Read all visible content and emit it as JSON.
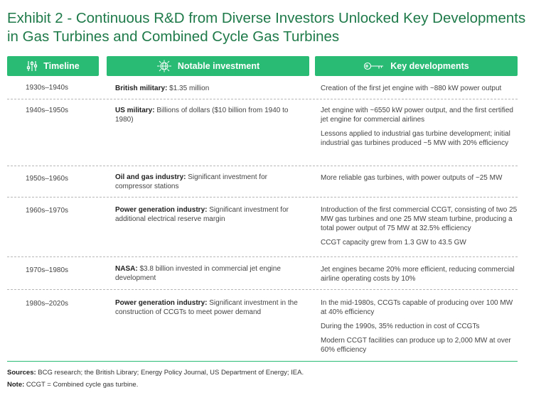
{
  "title": "Exhibit 2 - Continuous R&D from Diverse Investors Unlocked Key Developments in Gas Turbines and Combined Cycle Gas Turbines",
  "headers": {
    "timeline": "Timeline",
    "investment": "Notable investment",
    "developments": "Key developments"
  },
  "icons": {
    "timeline": "sliders-icon",
    "investment": "globe-network-icon",
    "developments": "key-icon"
  },
  "colors": {
    "title": "#1f7a4a",
    "header_bg": "#29ba74",
    "header_text": "#ffffff"
  },
  "rows": [
    {
      "period": "1930s–1940s",
      "investor": "British military:",
      "investment": " $1.35 million",
      "developments": [
        "Creation of the first jet engine with ~880 kW power output"
      ]
    },
    {
      "period": "1940s–1950s",
      "investor": "US military:",
      "investment": " Billions of dollars ($10 billion from 1940 to 1980)",
      "developments": [
        "Jet engine with ~6550 kW power output, and the first certified jet engine for commercial airlines",
        "Lessons applied to industrial gas turbine development; initial industrial gas turbines produced ~5 MW with 20% efficiency"
      ]
    },
    {
      "period": "1950s–1960s",
      "investor": "Oil and gas industry:",
      "investment": " Significant investment for compressor stations",
      "developments": [
        "More reliable gas turbines, with power outputs of ~25 MW"
      ]
    },
    {
      "period": "1960s–1970s",
      "investor": "Power generation industry:",
      "investment": " Significant investment for additional electrical reserve margin",
      "developments": [
        "Introduction of the first commercial CCGT, consisting of two 25 MW gas turbines and one 25 MW steam turbine, producing a total power output of 75 MW at 32.5% efficiency",
        "CCGT capacity grew from 1.3 GW to 43.5 GW"
      ]
    },
    {
      "period": "1970s–1980s",
      "investor": "NASA:",
      "investment": " $3.8 billion invested in commercial jet engine development",
      "developments": [
        "Jet engines became 20% more efficient, reducing commercial airline operating costs by 10%"
      ]
    },
    {
      "period": "1980s–2020s",
      "investor": "Power generation industry:",
      "investment": " Significant investment in the construction of CCGTs to meet power demand",
      "developments": [
        "In the mid-1980s, CCGTs capable of producing over 100 MW at 40% efficiency",
        "During the 1990s, 35% reduction in cost of CCGTs",
        "Modern CCGT facilities can produce up to 2,000 MW at over 60% efficiency"
      ]
    }
  ],
  "footnotes": {
    "sources_label": "Sources:",
    "sources_text": " BCG research; the British Library; Energy Policy Journal, US Department of Energy; IEA.",
    "note_label": "Note:",
    "note_text": " CCGT = Combined cycle gas turbine."
  }
}
